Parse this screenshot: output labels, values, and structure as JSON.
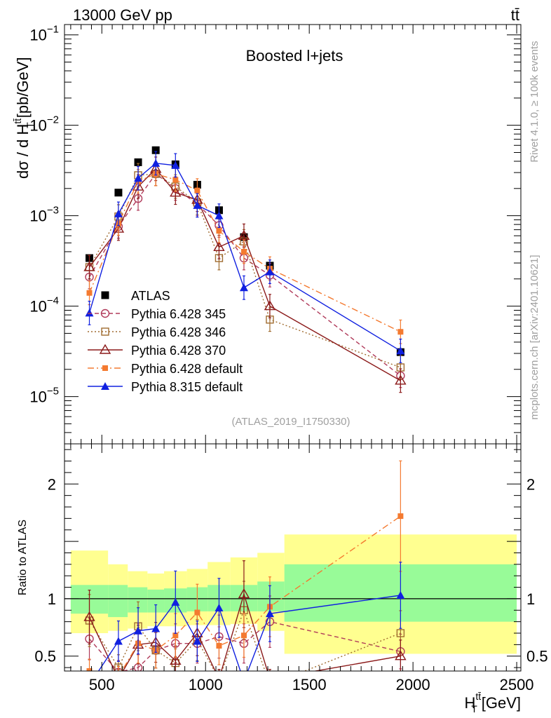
{
  "chart_data": [
    {
      "type": "line",
      "panel": "main",
      "header_left": "13000 GeV pp",
      "header_right": "tt̄",
      "title": "Boosted l+jets",
      "ylabel_main": "dσ / d H",
      "ylabel_sup": "tt̄",
      "ylabel_sub": "T",
      "ylabel_units": "[pb/GeV]",
      "yscale": "log",
      "ylim": [
        3e-06,
        0.13
      ],
      "xlim": [
        320,
        2520
      ],
      "y_ticks": [
        {
          "value": 0.1,
          "base": "10",
          "exp": "−1"
        },
        {
          "value": 0.01,
          "base": "10",
          "exp": "−2"
        },
        {
          "value": 0.001,
          "base": "10",
          "exp": "−3"
        },
        {
          "value": 0.0001,
          "base": "10",
          "exp": "−4"
        },
        {
          "value": 1e-05,
          "base": "10",
          "exp": "−5"
        }
      ],
      "analysis_label": "(ATLAS_2019_I1750330)",
      "side_label_top": "Rivet 4.1.0, ≥ 100k events",
      "side_label_bottom": "mcplots.cern.ch [arXiv:2401.10621]",
      "legend_position": "bottom-left",
      "x": [
        440,
        580,
        675,
        760,
        855,
        960,
        1065,
        1185,
        1310,
        1940
      ],
      "series": [
        {
          "name": "ATLAS",
          "color": "#000000",
          "marker": "square-filled",
          "dash": "none",
          "values": [
            0.00034,
            0.0018,
            0.0039,
            0.0053,
            0.0037,
            0.0022,
            0.00115,
            0.00058,
            0.00028,
            3.1e-05
          ]
        },
        {
          "name": "Pythia 6.428 345",
          "color": "#b03a5a",
          "marker": "circle-open",
          "dash": "6,4",
          "values": [
            0.00021,
            0.00076,
            0.00155,
            0.0029,
            0.002,
            0.00135,
            0.00078,
            0.00034,
            0.00022,
            1.7e-05
          ]
        },
        {
          "name": "Pythia 6.428 346",
          "color": "#a06c30",
          "marker": "square-open",
          "dash": "2,3",
          "values": [
            0.00027,
            0.00098,
            0.0028,
            0.0029,
            0.0021,
            0.0014,
            0.00034,
            0.00052,
            7.1e-05,
            2.1e-05
          ]
        },
        {
          "name": "Pythia 6.428 370",
          "color": "#8b1a1a",
          "marker": "triangle-open",
          "dash": "none",
          "values": [
            0.00027,
            0.00072,
            0.0021,
            0.0033,
            0.0018,
            0.0015,
            0.00045,
            0.0006,
            0.0001,
            1.5e-05
          ]
        },
        {
          "name": "Pythia 6.428 default",
          "color": "#f47a30",
          "marker": "square-filled-small",
          "dash": "9,4,2,4",
          "values": [
            0.00014,
            0.00082,
            0.0024,
            0.0029,
            0.0025,
            0.0019,
            0.00068,
            0.0004,
            0.00026,
            5.2e-05
          ]
        },
        {
          "name": "Pythia 8.315 default",
          "color": "#1020e0",
          "marker": "triangle-filled",
          "dash": "none",
          "values": [
            8.4e-05,
            0.00105,
            0.0026,
            0.0038,
            0.0036,
            0.0013,
            0.001,
            0.00016,
            0.00024,
            3.2e-05
          ]
        }
      ]
    },
    {
      "type": "line",
      "panel": "ratio",
      "ylabel": "Ratio to ATLAS",
      "xlabel_main": "H",
      "xlabel_sup": "tt̄",
      "xlabel_sub": "T",
      "xlabel_units": "[GeV]",
      "xlim": [
        320,
        2520
      ],
      "ylim": [
        0.37,
        2.35
      ],
      "x_ticks": [
        500,
        1000,
        1500,
        2000,
        2500
      ],
      "y_ticks": [
        0.5,
        1,
        2
      ],
      "band_edges": [
        350,
        530,
        625,
        720,
        800,
        910,
        1010,
        1120,
        1250,
        1380,
        2500
      ],
      "band_inner": [
        [
          0.87,
          1.12
        ],
        [
          0.84,
          1.12
        ],
        [
          0.88,
          1.1
        ],
        [
          0.88,
          1.08
        ],
        [
          0.88,
          1.09
        ],
        [
          0.89,
          1.1
        ],
        [
          0.89,
          1.12
        ],
        [
          0.89,
          1.12
        ],
        [
          0.89,
          1.15
        ],
        [
          0.8,
          1.3
        ]
      ],
      "band_outer": [
        [
          0.7,
          1.42
        ],
        [
          0.72,
          1.3
        ],
        [
          0.74,
          1.24
        ],
        [
          0.76,
          1.22
        ],
        [
          0.76,
          1.24
        ],
        [
          0.77,
          1.26
        ],
        [
          0.77,
          1.32
        ],
        [
          0.78,
          1.36
        ],
        [
          0.72,
          1.4
        ],
        [
          0.52,
          1.56
        ]
      ],
      "x": [
        440,
        580,
        675,
        760,
        855,
        960,
        1065,
        1185,
        1310,
        1940
      ],
      "series": [
        {
          "name": "Pythia 6.428 345",
          "values": [
            0.65,
            0.36,
            0.4,
            0.55,
            0.61,
            0.61,
            0.67,
            0.61,
            0.8,
            0.54
          ]
        },
        {
          "name": "Pythia 6.428 346",
          "values": [
            0.81,
            0.4,
            0.76,
            0.55,
            0.44,
            0.64,
            0.3,
            0.9,
            0.25,
            0.7
          ]
        },
        {
          "name": "Pythia 6.428 370",
          "values": [
            0.84,
            0.3,
            0.6,
            0.62,
            0.46,
            0.7,
            0.3,
            1.04,
            0.3,
            0.5
          ]
        },
        {
          "name": "Pythia 6.428 default",
          "values": [
            0.37,
            0.32,
            0.61,
            0.55,
            0.68,
            0.88,
            0.59,
            0.68,
            0.93,
            1.72
          ]
        },
        {
          "name": "Pythia 8.315 default",
          "values": [
            0.25,
            0.63,
            0.72,
            0.74,
            0.97,
            0.63,
            0.92,
            0.28,
            0.87,
            1.03
          ]
        }
      ]
    }
  ]
}
